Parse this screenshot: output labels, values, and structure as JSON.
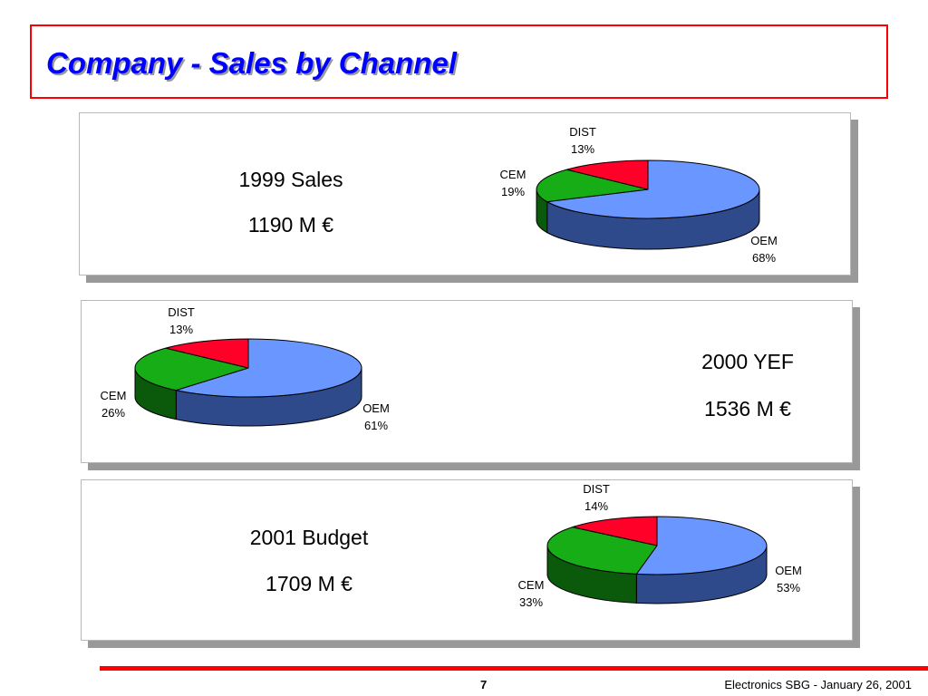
{
  "slide": {
    "title": "Company - Sales by Channel",
    "page_number": "7",
    "footer": "Electronics SBG  - January 26, 2001"
  },
  "colors": {
    "title": "#0000ff",
    "title_border": "#ff0000",
    "oem_top": "#6a96ff",
    "oem_side": "#2e4a8a",
    "cem_top": "#16ad16",
    "cem_side": "#0b5a0b",
    "dist_top": "#ff0028",
    "dist_side": "#8a0016"
  },
  "panels": [
    {
      "label_line1": "1999 Sales",
      "label_line2": "1190 M €"
    },
    {
      "label_line1": "2000 YEF",
      "label_line2": "1536 M €"
    },
    {
      "label_line1": "2001 Budget",
      "label_line2": "1709 M €"
    }
  ],
  "chart_data": [
    {
      "type": "pie",
      "title": "1999 Sales",
      "categories": [
        "OEM",
        "CEM",
        "DIST"
      ],
      "values": [
        68,
        19,
        13
      ],
      "labels": [
        "68%",
        "19%",
        "13%"
      ]
    },
    {
      "type": "pie",
      "title": "2000 YEF",
      "categories": [
        "OEM",
        "CEM",
        "DIST"
      ],
      "values": [
        61,
        26,
        13
      ],
      "labels": [
        "61%",
        "26%",
        "13%"
      ]
    },
    {
      "type": "pie",
      "title": "2001 Budget",
      "categories": [
        "OEM",
        "CEM",
        "DIST"
      ],
      "values": [
        53,
        33,
        14
      ],
      "labels": [
        "53%",
        "33%",
        "14%"
      ]
    }
  ]
}
